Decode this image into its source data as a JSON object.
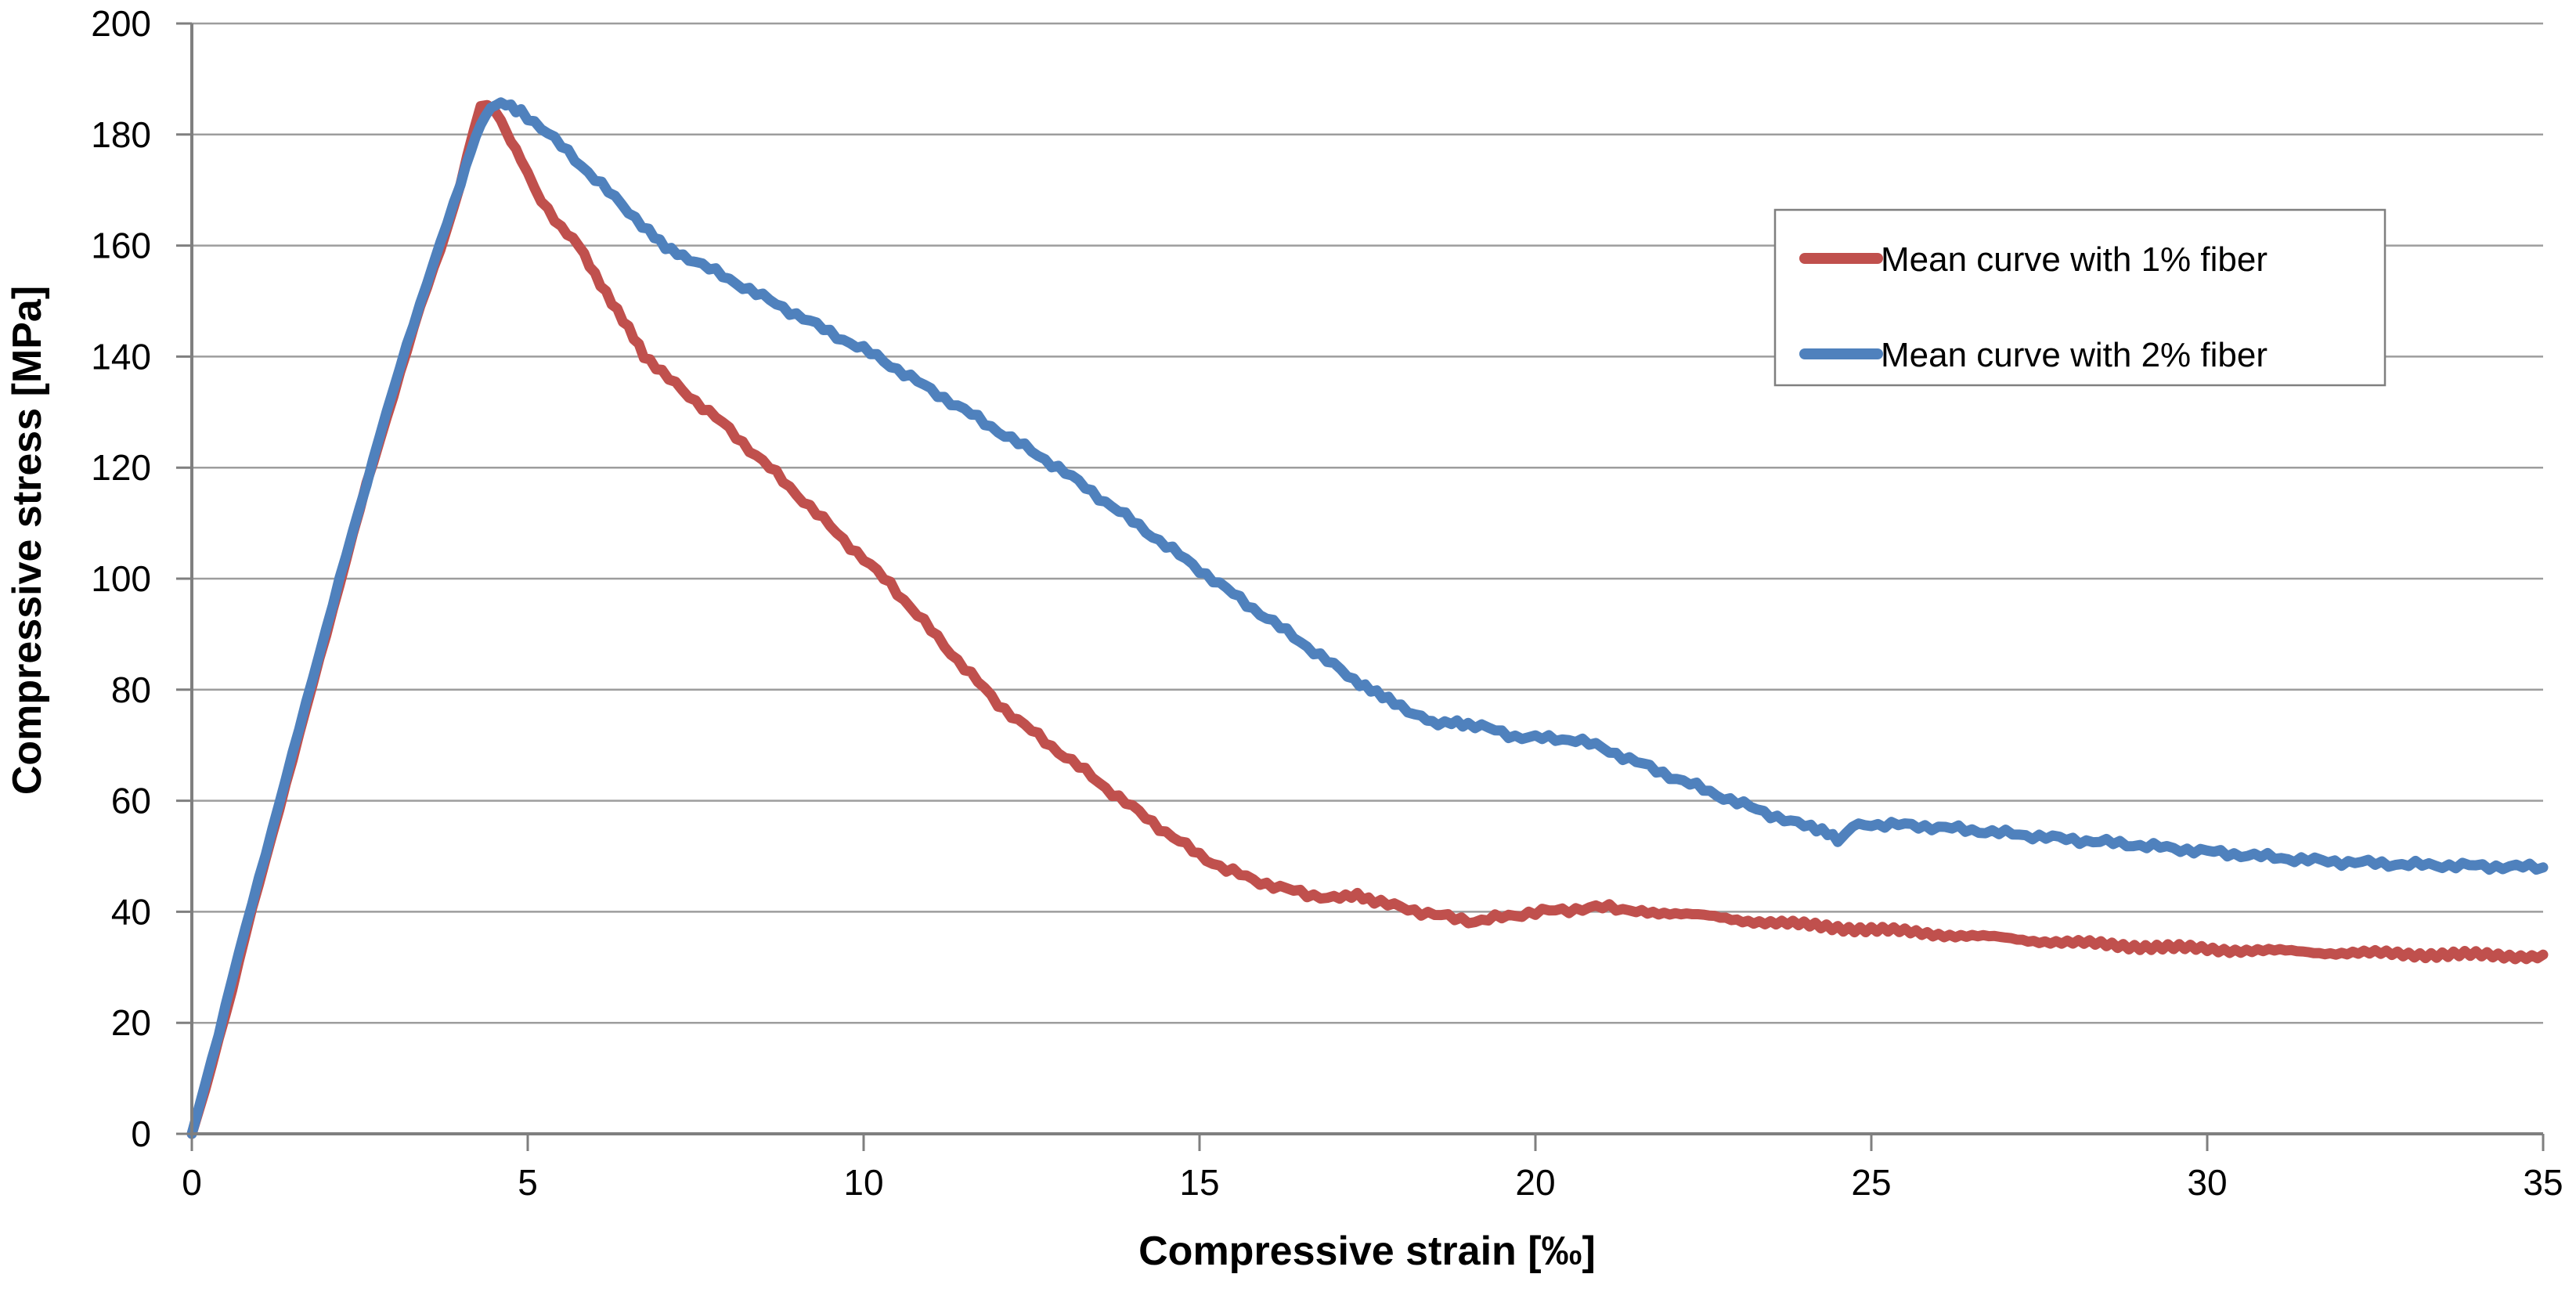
{
  "chart_data": {
    "type": "line",
    "title": "",
    "xlabel": "Compressive strain [‰]",
    "ylabel": "Compressive stress [MPa]",
    "xlim": [
      0,
      35
    ],
    "ylim": [
      0,
      200
    ],
    "x_ticks": [
      0,
      5,
      10,
      15,
      20,
      25,
      30,
      35
    ],
    "y_ticks": [
      0,
      20,
      40,
      60,
      80,
      100,
      120,
      140,
      160,
      180,
      200
    ],
    "grid": "horizontal",
    "legend_position": "inside-top-right",
    "series": [
      {
        "name": "Mean curve with 1% fiber",
        "color": "#C0504D",
        "points": [
          [
            0,
            0
          ],
          [
            0.2,
            8
          ],
          [
            0.4,
            17
          ],
          [
            0.6,
            26
          ],
          [
            0.8,
            36
          ],
          [
            1.0,
            45
          ],
          [
            1.2,
            54
          ],
          [
            1.4,
            63
          ],
          [
            1.6,
            72
          ],
          [
            1.8,
            81
          ],
          [
            2.0,
            90
          ],
          [
            2.2,
            99
          ],
          [
            2.4,
            108
          ],
          [
            2.6,
            117
          ],
          [
            2.8,
            125
          ],
          [
            3.0,
            133
          ],
          [
            3.2,
            141
          ],
          [
            3.4,
            149
          ],
          [
            3.6,
            156
          ],
          [
            3.8,
            163
          ],
          [
            4.0,
            171
          ],
          [
            4.1,
            176
          ],
          [
            4.2,
            181
          ],
          [
            4.3,
            185
          ],
          [
            4.4,
            185.5
          ],
          [
            4.5,
            184.5
          ],
          [
            4.6,
            182.5
          ],
          [
            4.75,
            179
          ],
          [
            4.9,
            175.5
          ],
          [
            5.1,
            170.5
          ],
          [
            5.3,
            166.5
          ],
          [
            5.5,
            163
          ],
          [
            5.76,
            160
          ],
          [
            6.0,
            155
          ],
          [
            6.25,
            150
          ],
          [
            6.5,
            145
          ],
          [
            6.73,
            140
          ],
          [
            7.0,
            137
          ],
          [
            7.3,
            134
          ],
          [
            7.6,
            131
          ],
          [
            7.9,
            128
          ],
          [
            8.2,
            124.5
          ],
          [
            8.6,
            120
          ],
          [
            9.0,
            115.3
          ],
          [
            9.4,
            110.6
          ],
          [
            9.8,
            105.9
          ],
          [
            10.2,
            101.2
          ],
          [
            10.4,
            99
          ],
          [
            10.8,
            93.5
          ],
          [
            11.2,
            88
          ],
          [
            11.6,
            82.7
          ],
          [
            12.0,
            77.5
          ],
          [
            12.4,
            73.5
          ],
          [
            12.8,
            69.8
          ],
          [
            13.2,
            66.2
          ],
          [
            13.6,
            62.4
          ],
          [
            14.0,
            58.8
          ],
          [
            14.2,
            57
          ],
          [
            14.6,
            53.5
          ],
          [
            15.0,
            50.2
          ],
          [
            15.4,
            47.6
          ],
          [
            15.8,
            45.8
          ],
          [
            16.2,
            44.3
          ],
          [
            16.6,
            43.2
          ],
          [
            17.0,
            42.4
          ],
          [
            17.35,
            42.9
          ],
          [
            17.6,
            42
          ],
          [
            17.9,
            41
          ],
          [
            18.3,
            40
          ],
          [
            18.7,
            39
          ],
          [
            19.1,
            38.3
          ],
          [
            19.5,
            39
          ],
          [
            19.9,
            39.8
          ],
          [
            20.3,
            40.2
          ],
          [
            20.7,
            40.6
          ],
          [
            21.1,
            40.8
          ],
          [
            21.5,
            40.3
          ],
          [
            22.0,
            39.8
          ],
          [
            22.5,
            39.2
          ],
          [
            23.0,
            38.6
          ],
          [
            23.5,
            38.1
          ],
          [
            24.0,
            37.6
          ],
          [
            24.5,
            37.2
          ],
          [
            25.0,
            36.8
          ],
          [
            25.5,
            36.4
          ],
          [
            26.0,
            36.0
          ],
          [
            26.5,
            35.6
          ],
          [
            27.0,
            35.2
          ],
          [
            27.5,
            34.8
          ],
          [
            28.0,
            34.4
          ],
          [
            28.5,
            34.1
          ],
          [
            29.0,
            33.8
          ],
          [
            29.5,
            33.5
          ],
          [
            30.0,
            33.3
          ],
          [
            30.5,
            33.1
          ],
          [
            31.0,
            32.9
          ],
          [
            31.5,
            32.8
          ],
          [
            32.0,
            32.6
          ],
          [
            32.5,
            32.5
          ],
          [
            33.0,
            32.4
          ],
          [
            33.5,
            32.3
          ],
          [
            34.0,
            32.2
          ],
          [
            34.5,
            32.1
          ],
          [
            35,
            32
          ]
        ]
      },
      {
        "name": "Mean curve with 2% fiber",
        "color": "#4F81BD",
        "points": [
          [
            0,
            0
          ],
          [
            0.2,
            9
          ],
          [
            0.4,
            18
          ],
          [
            0.6,
            28
          ],
          [
            0.8,
            37
          ],
          [
            1.0,
            46
          ],
          [
            1.2,
            55
          ],
          [
            1.4,
            64
          ],
          [
            1.6,
            73
          ],
          [
            1.8,
            82
          ],
          [
            2.0,
            91
          ],
          [
            2.2,
            100
          ],
          [
            2.4,
            108.5
          ],
          [
            2.6,
            117
          ],
          [
            2.8,
            126
          ],
          [
            3.0,
            134
          ],
          [
            3.2,
            142
          ],
          [
            3.4,
            149.5
          ],
          [
            3.6,
            157
          ],
          [
            3.8,
            164
          ],
          [
            4.0,
            171
          ],
          [
            4.15,
            177
          ],
          [
            4.3,
            182
          ],
          [
            4.45,
            184.8
          ],
          [
            4.6,
            185.6
          ],
          [
            4.75,
            185.2
          ],
          [
            4.9,
            184.2
          ],
          [
            5.1,
            182.3
          ],
          [
            5.3,
            180.2
          ],
          [
            5.6,
            176.8
          ],
          [
            5.9,
            173.3
          ],
          [
            6.2,
            169.7
          ],
          [
            6.5,
            166.2
          ],
          [
            6.8,
            162.7
          ],
          [
            7.05,
            160
          ],
          [
            7.4,
            157.8
          ],
          [
            7.8,
            155.2
          ],
          [
            8.2,
            152.7
          ],
          [
            8.6,
            150.1
          ],
          [
            9.0,
            147.6
          ],
          [
            9.4,
            145
          ],
          [
            9.8,
            142.5
          ],
          [
            10.2,
            140
          ],
          [
            10.6,
            137
          ],
          [
            11.0,
            134
          ],
          [
            11.4,
            131.1
          ],
          [
            11.8,
            128.1
          ],
          [
            12.2,
            125.2
          ],
          [
            12.6,
            122.2
          ],
          [
            12.9,
            120
          ],
          [
            13.3,
            116.5
          ],
          [
            13.7,
            113
          ],
          [
            14.1,
            109.5
          ],
          [
            14.5,
            106
          ],
          [
            14.9,
            102.5
          ],
          [
            15.3,
            99
          ],
          [
            15.7,
            95.5
          ],
          [
            16.1,
            92.1
          ],
          [
            16.5,
            88.7
          ],
          [
            16.9,
            85.2
          ],
          [
            17.3,
            81.8
          ],
          [
            17.55,
            80
          ],
          [
            17.9,
            77.6
          ],
          [
            18.3,
            75.2
          ],
          [
            18.55,
            74
          ],
          [
            18.75,
            74.2
          ],
          [
            19.0,
            73.8
          ],
          [
            19.3,
            73
          ],
          [
            19.7,
            71.6
          ],
          [
            20.0,
            71.3
          ],
          [
            20.3,
            71.2
          ],
          [
            20.6,
            71
          ],
          [
            21.0,
            69.5
          ],
          [
            21.4,
            67.5
          ],
          [
            21.8,
            65.5
          ],
          [
            22.2,
            63.5
          ],
          [
            22.6,
            61.6
          ],
          [
            23.0,
            59.7
          ],
          [
            23.4,
            58
          ],
          [
            23.8,
            56.2
          ],
          [
            24.1,
            55.2
          ],
          [
            24.35,
            54
          ],
          [
            24.5,
            52.8
          ],
          [
            24.62,
            53.5
          ],
          [
            24.72,
            55.6
          ],
          [
            24.9,
            55.8
          ],
          [
            25.2,
            55.7
          ],
          [
            25.5,
            55.6
          ],
          [
            25.8,
            55.4
          ],
          [
            26.2,
            55
          ],
          [
            26.6,
            54.6
          ],
          [
            27.0,
            54.1
          ],
          [
            27.4,
            53.7
          ],
          [
            27.8,
            53.2
          ],
          [
            28.2,
            52.8
          ],
          [
            28.6,
            52.4
          ],
          [
            29.0,
            52
          ],
          [
            29.4,
            51.5
          ],
          [
            29.8,
            51.1
          ],
          [
            30.2,
            50.6
          ],
          [
            30.6,
            50.2
          ],
          [
            31.0,
            49.8
          ],
          [
            31.4,
            49.4
          ],
          [
            31.8,
            49.1
          ],
          [
            32.2,
            48.9
          ],
          [
            32.6,
            48.7
          ],
          [
            33.0,
            48.5
          ],
          [
            33.4,
            48.4
          ],
          [
            33.8,
            48.3
          ],
          [
            34.2,
            48.2
          ],
          [
            34.6,
            48.1
          ],
          [
            35,
            48
          ]
        ]
      }
    ]
  },
  "legend": {
    "items": [
      {
        "label": "Mean curve with 1% fiber"
      },
      {
        "label": "Mean curve with 2% fiber"
      }
    ]
  },
  "colors": {
    "background": "#ffffff",
    "gridline": "#9D9D9D",
    "axis_line": "#7F7F7F",
    "tick_text": "#000000",
    "legend_border": "#7F7F7F",
    "series_red": "#C0504D",
    "series_blue": "#4F81BD"
  }
}
